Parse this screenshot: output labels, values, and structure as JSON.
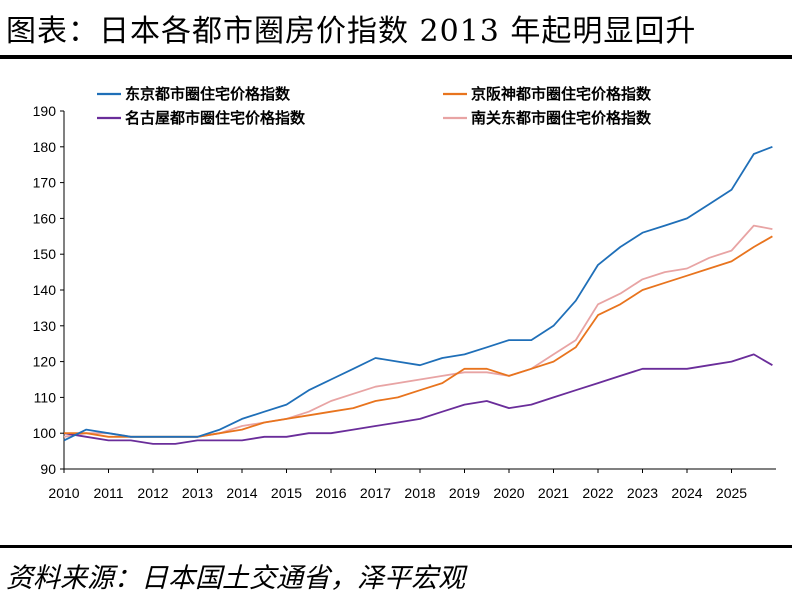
{
  "title": "图表：日本各都市圈房价指数 2013 年起明显回升",
  "source": "资料来源：日本国土交通省，泽平宏观",
  "chart_data": {
    "type": "line",
    "title": "图表：日本各都市圈房价指数 2013 年起明显回升",
    "xlabel": "",
    "ylabel": "",
    "ylim": [
      90,
      190
    ],
    "xlim": [
      2010,
      2026
    ],
    "yticks": [
      "90",
      "100",
      "110",
      "120",
      "130",
      "140",
      "150",
      "160",
      "170",
      "180",
      "190"
    ],
    "xticks": [
      "2010",
      "2011",
      "2012",
      "2013",
      "2014",
      "2015",
      "2016",
      "2017",
      "2018",
      "2019",
      "2020",
      "2021",
      "2022",
      "2023",
      "2024",
      "2025"
    ],
    "grid": false,
    "legend": "top",
    "series": [
      {
        "name": "东京都市圈住宅价格指数",
        "color": "#1F6FB8",
        "x": [
          2010,
          2010.5,
          2011,
          2011.5,
          2012,
          2012.5,
          2013,
          2013.5,
          2014,
          2014.5,
          2015,
          2015.5,
          2016,
          2016.5,
          2017,
          2017.5,
          2018,
          2018.5,
          2019,
          2019.5,
          2020,
          2020.5,
          2021,
          2021.5,
          2022,
          2022.5,
          2023,
          2023.5,
          2024,
          2024.5,
          2025,
          2025.5,
          2025.92
        ],
        "values": [
          98,
          101,
          100,
          99,
          99,
          99,
          99,
          101,
          104,
          106,
          108,
          112,
          115,
          118,
          121,
          120,
          119,
          121,
          122,
          124,
          126,
          126,
          130,
          137,
          147,
          152,
          156,
          158,
          160,
          164,
          168,
          178,
          180
        ]
      },
      {
        "name": "京阪神都市圈住宅价格指数",
        "color": "#E8741E",
        "x": [
          2010,
          2010.5,
          2011,
          2011.5,
          2012,
          2012.5,
          2013,
          2013.5,
          2014,
          2014.5,
          2015,
          2015.5,
          2016,
          2016.5,
          2017,
          2017.5,
          2018,
          2018.5,
          2019,
          2019.5,
          2020,
          2020.5,
          2021,
          2021.5,
          2022,
          2022.5,
          2023,
          2023.5,
          2024,
          2024.5,
          2025,
          2025.5,
          2025.92
        ],
        "values": [
          100,
          100,
          99,
          99,
          99,
          99,
          99,
          100,
          101,
          103,
          104,
          105,
          106,
          107,
          109,
          110,
          112,
          114,
          118,
          118,
          116,
          118,
          120,
          124,
          133,
          136,
          140,
          142,
          144,
          146,
          148,
          152,
          155
        ]
      },
      {
        "name": "名古屋都市圈住宅价格指数",
        "color": "#6A2D9A",
        "x": [
          2010,
          2010.5,
          2011,
          2011.5,
          2012,
          2012.5,
          2013,
          2013.5,
          2014,
          2014.5,
          2015,
          2015.5,
          2016,
          2016.5,
          2017,
          2017.5,
          2018,
          2018.5,
          2019,
          2019.5,
          2020,
          2020.5,
          2021,
          2021.5,
          2022,
          2022.5,
          2023,
          2023.5,
          2024,
          2024.5,
          2025,
          2025.5,
          2025.92
        ],
        "values": [
          100,
          99,
          98,
          98,
          97,
          97,
          98,
          98,
          98,
          99,
          99,
          100,
          100,
          101,
          102,
          103,
          104,
          106,
          108,
          109,
          107,
          108,
          110,
          112,
          114,
          116,
          118,
          118,
          118,
          119,
          120,
          122,
          119
        ]
      },
      {
        "name": "南关东都市圈住宅价格指数",
        "color": "#E8A4A4",
        "x": [
          2010,
          2010.5,
          2011,
          2011.5,
          2012,
          2012.5,
          2013,
          2013.5,
          2014,
          2014.5,
          2015,
          2015.5,
          2016,
          2016.5,
          2017,
          2017.5,
          2018,
          2018.5,
          2019,
          2019.5,
          2020,
          2020.5,
          2021,
          2021.5,
          2022,
          2022.5,
          2023,
          2023.5,
          2024,
          2024.5,
          2025,
          2025.5,
          2025.92
        ],
        "values": [
          99,
          100,
          100,
          99,
          99,
          99,
          99,
          100,
          102,
          103,
          104,
          106,
          109,
          111,
          113,
          114,
          115,
          116,
          117,
          117,
          116,
          118,
          122,
          126,
          136,
          139,
          143,
          145,
          146,
          149,
          151,
          158,
          157
        ]
      }
    ]
  }
}
